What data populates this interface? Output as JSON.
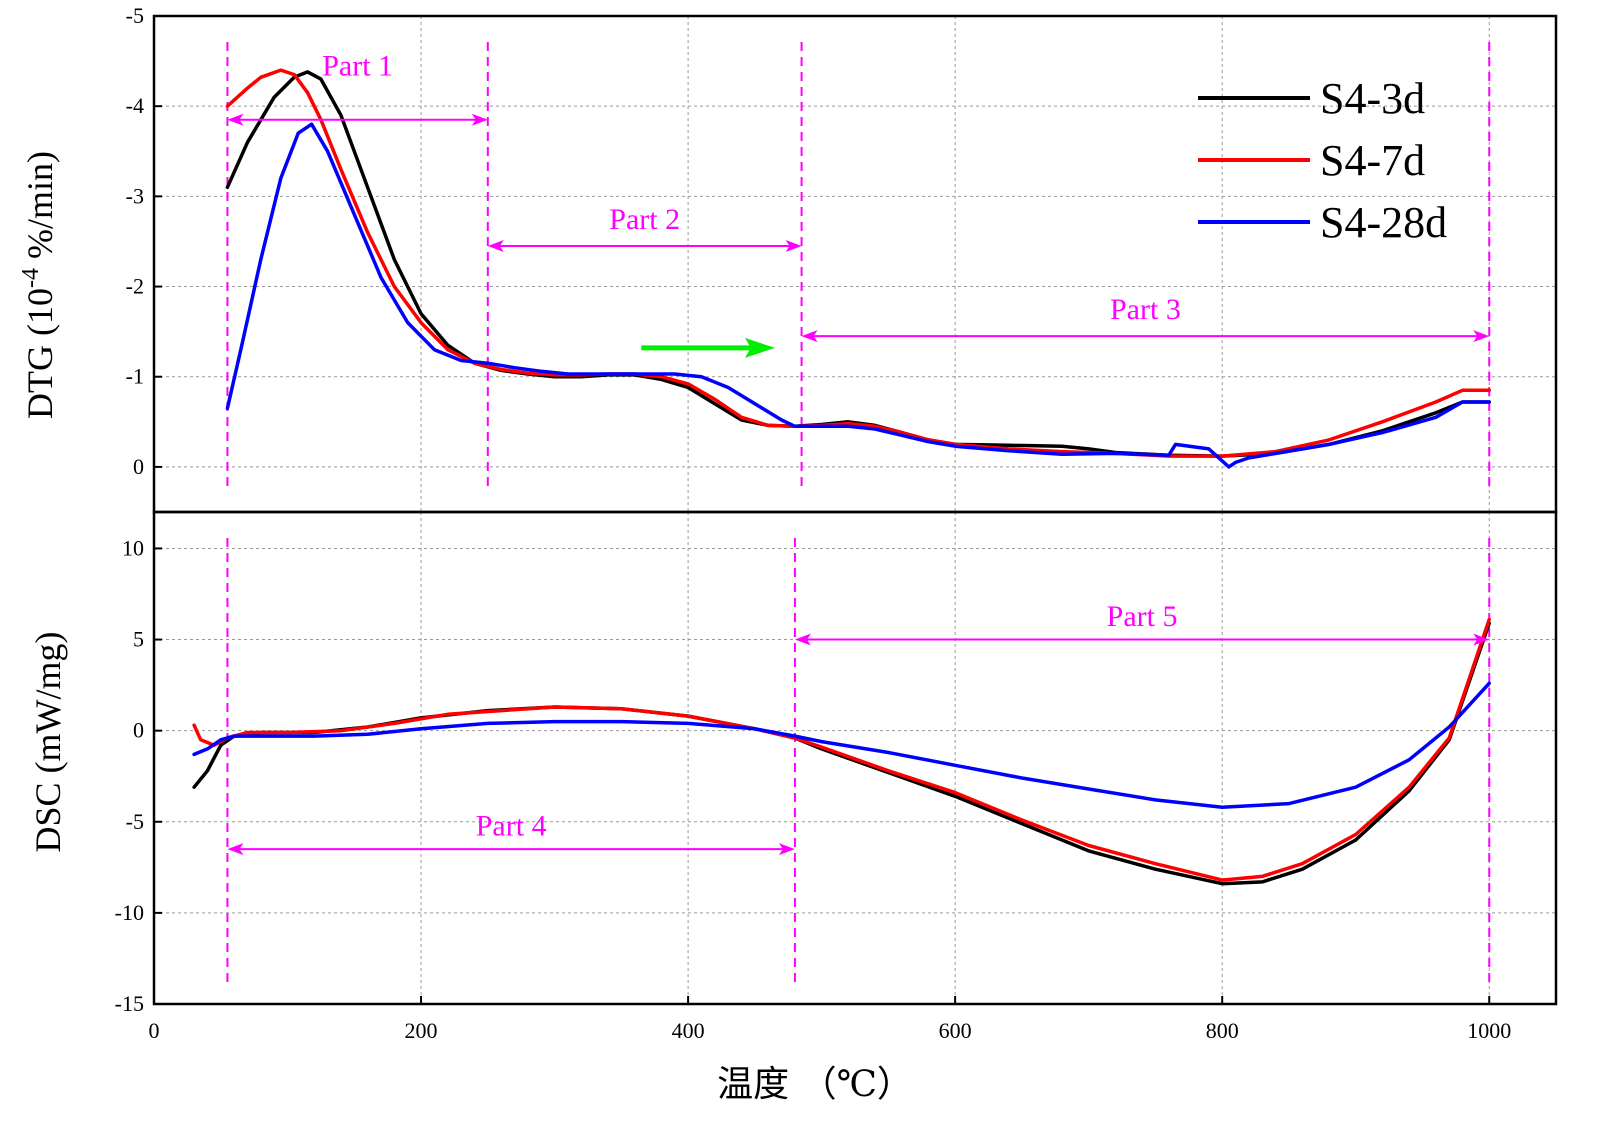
{
  "chart_data": [
    {
      "type": "line",
      "id": "dtg",
      "ylabel_main": "DTG (10",
      "ylabel_sup": "-4",
      "ylabel_tail": " %/min)",
      "xlim": [
        0,
        1050
      ],
      "ylim": [
        0.5,
        -5
      ],
      "yticks": [
        0,
        -1,
        -2,
        -3,
        -4,
        -5
      ],
      "yticklabels": [
        "0",
        "-1",
        "-2",
        "-3",
        "-4",
        "-5"
      ],
      "grid": true,
      "legend": "top-right",
      "series": [
        {
          "name": "S4-3d",
          "color": "#000000",
          "x": [
            55,
            70,
            90,
            105,
            115,
            125,
            140,
            160,
            180,
            200,
            220,
            240,
            260,
            280,
            300,
            320,
            340,
            360,
            380,
            400,
            420,
            440,
            460,
            480,
            500,
            520,
            540,
            560,
            580,
            600,
            640,
            680,
            700,
            720,
            760,
            800,
            840,
            880,
            920,
            960,
            980,
            1000
          ],
          "y": [
            -3.1,
            -3.6,
            -4.1,
            -4.32,
            -4.38,
            -4.3,
            -3.9,
            -3.1,
            -2.3,
            -1.7,
            -1.35,
            -1.15,
            -1.07,
            -1.03,
            -1.0,
            -1.0,
            -1.02,
            -1.02,
            -0.97,
            -0.88,
            -0.7,
            -0.52,
            -0.46,
            -0.45,
            -0.47,
            -0.5,
            -0.46,
            -0.38,
            -0.3,
            -0.25,
            -0.24,
            -0.23,
            -0.2,
            -0.16,
            -0.13,
            -0.12,
            -0.15,
            -0.25,
            -0.4,
            -0.6,
            -0.72,
            -0.72
          ]
        },
        {
          "name": "S4-7d",
          "color": "#ff0000",
          "x": [
            55,
            70,
            80,
            95,
            105,
            115,
            125,
            140,
            160,
            180,
            200,
            220,
            240,
            260,
            280,
            300,
            320,
            340,
            360,
            380,
            400,
            420,
            440,
            460,
            480,
            500,
            520,
            540,
            560,
            580,
            600,
            640,
            680,
            720,
            760,
            800,
            840,
            880,
            920,
            960,
            980,
            1000
          ],
          "y": [
            -4.0,
            -4.2,
            -4.32,
            -4.4,
            -4.35,
            -4.15,
            -3.85,
            -3.3,
            -2.6,
            -2.0,
            -1.6,
            -1.3,
            -1.15,
            -1.08,
            -1.04,
            -1.02,
            -1.02,
            -1.03,
            -1.03,
            -1.0,
            -0.92,
            -0.75,
            -0.55,
            -0.46,
            -0.45,
            -0.46,
            -0.48,
            -0.45,
            -0.38,
            -0.3,
            -0.25,
            -0.2,
            -0.17,
            -0.15,
            -0.12,
            -0.12,
            -0.17,
            -0.3,
            -0.5,
            -0.72,
            -0.85,
            -0.85
          ]
        },
        {
          "name": "S4-28d",
          "color": "#0000ff",
          "x": [
            55,
            65,
            80,
            95,
            108,
            118,
            130,
            150,
            170,
            190,
            210,
            230,
            250,
            270,
            290,
            310,
            330,
            350,
            370,
            390,
            410,
            430,
            450,
            470,
            480,
            500,
            520,
            540,
            560,
            580,
            600,
            640,
            680,
            720,
            760,
            765,
            790,
            805,
            810,
            820,
            840,
            880,
            920,
            960,
            980,
            1000
          ],
          "y": [
            -0.65,
            -1.3,
            -2.3,
            -3.2,
            -3.7,
            -3.8,
            -3.5,
            -2.8,
            -2.1,
            -1.6,
            -1.3,
            -1.18,
            -1.15,
            -1.1,
            -1.06,
            -1.03,
            -1.03,
            -1.03,
            -1.03,
            -1.03,
            -1.0,
            -0.88,
            -0.7,
            -0.52,
            -0.45,
            -0.45,
            -0.45,
            -0.42,
            -0.35,
            -0.28,
            -0.23,
            -0.18,
            -0.14,
            -0.15,
            -0.13,
            -0.25,
            -0.2,
            0.0,
            -0.05,
            -0.1,
            -0.15,
            -0.25,
            -0.38,
            -0.55,
            -0.72,
            -0.72
          ]
        }
      ],
      "annotations": [
        {
          "label": "Part 1",
          "x_from": 55,
          "x_to": 250,
          "y": -3.85,
          "label_y": -4.45
        },
        {
          "label": "Part 2",
          "x_from": 250,
          "x_to": 485,
          "y": -2.45,
          "label_y": -2.75
        },
        {
          "label": "Part 3",
          "x_from": 485,
          "x_to": 1000,
          "y": -1.45,
          "label_y": -1.75
        }
      ],
      "vlines": [
        55,
        250,
        485,
        1000
      ],
      "green_arrow": {
        "x_from": 365,
        "x_to": 465,
        "y": -1.32
      }
    },
    {
      "type": "line",
      "id": "dsc",
      "ylabel": "DSC (mW/mg)",
      "xlim": [
        0,
        1050
      ],
      "ylim": [
        -15,
        12
      ],
      "yticks": [
        10,
        5,
        0,
        -5,
        -10,
        -15
      ],
      "yticklabels": [
        "10",
        "5",
        "0",
        "-5",
        "-10",
        "-15"
      ],
      "xticks": [
        0,
        200,
        400,
        600,
        800,
        1000
      ],
      "xticklabels": [
        "0",
        "200",
        "400",
        "600",
        "800",
        "1000"
      ],
      "xlabel": "温度 （℃）",
      "grid": true,
      "series": [
        {
          "name": "S4-3d",
          "color": "#000000",
          "x": [
            30,
            40,
            50,
            60,
            80,
            120,
            160,
            200,
            250,
            300,
            350,
            400,
            450,
            480,
            500,
            550,
            600,
            650,
            700,
            750,
            800,
            830,
            860,
            900,
            940,
            970,
            1000
          ],
          "y": [
            -3.1,
            -2.2,
            -0.8,
            -0.3,
            -0.1,
            -0.1,
            0.2,
            0.7,
            1.1,
            1.3,
            1.2,
            0.8,
            0.1,
            -0.4,
            -1.0,
            -2.3,
            -3.6,
            -5.1,
            -6.6,
            -7.6,
            -8.4,
            -8.3,
            -7.6,
            -6.0,
            -3.3,
            -0.5,
            5.9
          ]
        },
        {
          "name": "S4-7d",
          "color": "#ff0000",
          "x": [
            30,
            35,
            45,
            55,
            70,
            100,
            140,
            180,
            220,
            260,
            300,
            350,
            400,
            450,
            480,
            500,
            550,
            600,
            650,
            700,
            750,
            800,
            830,
            860,
            900,
            940,
            970,
            1000
          ],
          "y": [
            0.3,
            -0.5,
            -0.8,
            -0.4,
            -0.1,
            -0.1,
            0.0,
            0.4,
            0.9,
            1.1,
            1.3,
            1.2,
            0.8,
            0.1,
            -0.4,
            -0.9,
            -2.2,
            -3.4,
            -4.9,
            -6.3,
            -7.3,
            -8.2,
            -8.0,
            -7.3,
            -5.7,
            -3.1,
            -0.4,
            6.1
          ]
        },
        {
          "name": "S4-28d",
          "color": "#0000ff",
          "x": [
            30,
            40,
            50,
            60,
            80,
            120,
            160,
            200,
            250,
            300,
            350,
            400,
            450,
            480,
            500,
            550,
            600,
            650,
            700,
            750,
            800,
            850,
            900,
            940,
            970,
            1000
          ],
          "y": [
            -1.3,
            -1.0,
            -0.5,
            -0.3,
            -0.3,
            -0.3,
            -0.2,
            0.1,
            0.4,
            0.5,
            0.5,
            0.4,
            0.1,
            -0.3,
            -0.6,
            -1.2,
            -1.9,
            -2.6,
            -3.2,
            -3.8,
            -4.2,
            -4.0,
            -3.1,
            -1.6,
            0.2,
            2.6
          ]
        }
      ],
      "annotations": [
        {
          "label": "Part 4",
          "x_from": 55,
          "x_to": 480,
          "y": -6.5,
          "label_y": -5.2
        },
        {
          "label": "Part 5",
          "x_from": 480,
          "x_to": 1000,
          "y": 5.0,
          "label_y": 6.3
        }
      ],
      "vlines": [
        55,
        480,
        1000
      ]
    }
  ]
}
